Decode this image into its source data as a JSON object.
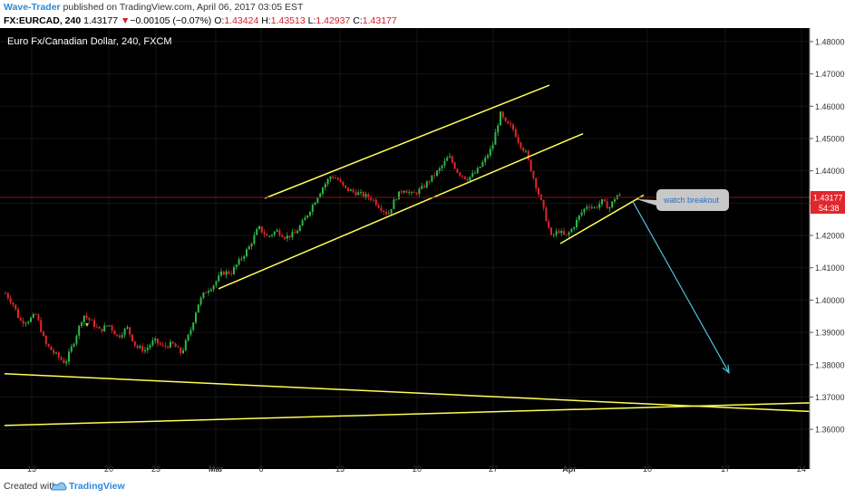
{
  "header": {
    "author": "Wave-Trader",
    "published_text": " published on TradingView.com, April 06, 2017 03:05 EST"
  },
  "quote": {
    "symbol": "FX:EURCAD, 240",
    "last": "1.43177",
    "change_arrow": "▼",
    "change": "−0.00105 (−0.07%)",
    "open_label": "O:",
    "open": "1.43424",
    "high_label": "H:",
    "high": "1.43513",
    "low_label": "L:",
    "low": "1.42937",
    "close_label": "C:",
    "close": "1.43177"
  },
  "footer": {
    "created_with": "Created with",
    "brand": "TradingView"
  },
  "chart_data": {
    "type": "candlestick",
    "title": "Euro Fx/Canadian Dollar, 240, FXCM",
    "x_tick_labels": [
      "13",
      "20",
      "23",
      "Mar",
      "6",
      "13",
      "20",
      "27",
      "Apr",
      "10",
      "17",
      "24"
    ],
    "y_tick_labels": [
      "1.48000",
      "1.47000",
      "1.46000",
      "1.45000",
      "1.44000",
      "1.43000",
      "1.42000",
      "1.41000",
      "1.40000",
      "1.39000",
      "1.38000",
      "1.37000",
      "1.36000"
    ],
    "ylim": [
      1.355,
      1.4825
    ],
    "last_price_label": "1.43177",
    "countdown_label": "54:38",
    "up_color": "#2fb84a",
    "down_color": "#e2262c",
    "trendline_color": "#ffff55",
    "projection_color": "#4fc3e0",
    "annotation": "watch breakout",
    "price_path": [
      [
        5,
        1.4025
      ],
      [
        15,
        1.3985
      ],
      [
        22,
        1.3935
      ],
      [
        30,
        1.3935
      ],
      [
        40,
        1.3955
      ],
      [
        50,
        1.3865
      ],
      [
        60,
        1.3835
      ],
      [
        72,
        1.3805
      ],
      [
        82,
        1.3875
      ],
      [
        92,
        1.3955
      ],
      [
        100,
        1.3935
      ],
      [
        110,
        1.3905
      ],
      [
        120,
        1.3925
      ],
      [
        130,
        1.3885
      ],
      [
        140,
        1.3915
      ],
      [
        150,
        1.3855
      ],
      [
        160,
        1.3845
      ],
      [
        170,
        1.3875
      ],
      [
        180,
        1.3855
      ],
      [
        190,
        1.3865
      ],
      [
        200,
        1.3835
      ],
      [
        210,
        1.3905
      ],
      [
        218,
        1.3985
      ],
      [
        226,
        1.4025
      ],
      [
        235,
        1.4045
      ],
      [
        245,
        1.4085
      ],
      [
        255,
        1.4085
      ],
      [
        265,
        1.4125
      ],
      [
        275,
        1.4165
      ],
      [
        285,
        1.4225
      ],
      [
        295,
        1.4195
      ],
      [
        305,
        1.4215
      ],
      [
        315,
        1.4195
      ],
      [
        325,
        1.4205
      ],
      [
        335,
        1.4245
      ],
      [
        345,
        1.4295
      ],
      [
        355,
        1.4345
      ],
      [
        365,
        1.4385
      ],
      [
        372,
        1.4375
      ],
      [
        380,
        1.4345
      ],
      [
        390,
        1.4335
      ],
      [
        400,
        1.4325
      ],
      [
        410,
        1.4315
      ],
      [
        420,
        1.4285
      ],
      [
        428,
        1.4265
      ],
      [
        436,
        1.4315
      ],
      [
        445,
        1.4345
      ],
      [
        455,
        1.4325
      ],
      [
        465,
        1.4345
      ],
      [
        475,
        1.4375
      ],
      [
        485,
        1.4405
      ],
      [
        495,
        1.4445
      ],
      [
        505,
        1.4395
      ],
      [
        515,
        1.4375
      ],
      [
        525,
        1.4395
      ],
      [
        535,
        1.4435
      ],
      [
        543,
        1.4475
      ],
      [
        548,
        1.4535
      ],
      [
        552,
        1.4575
      ],
      [
        558,
        1.4545
      ],
      [
        565,
        1.4535
      ],
      [
        573,
        1.4485
      ],
      [
        580,
        1.4455
      ],
      [
        590,
        1.4365
      ],
      [
        600,
        1.4275
      ],
      [
        608,
        1.4195
      ],
      [
        616,
        1.4215
      ],
      [
        624,
        1.4195
      ],
      [
        632,
        1.4225
      ],
      [
        640,
        1.4265
      ],
      [
        648,
        1.4295
      ],
      [
        656,
        1.4285
      ],
      [
        664,
        1.4305
      ],
      [
        672,
        1.4285
      ],
      [
        680,
        1.4325
      ],
      [
        688,
        1.4318
      ]
    ],
    "trendlines": [
      {
        "name": "channel-upper",
        "points": [
          [
            292,
            1.4315
          ],
          [
            606,
            1.4665
          ]
        ]
      },
      {
        "name": "channel-lower",
        "points": [
          [
            241,
            1.4035
          ],
          [
            643,
            1.4515
          ]
        ]
      },
      {
        "name": "rising-support",
        "points": [
          [
            618,
            1.4175
          ],
          [
            710,
            1.4325
          ]
        ]
      },
      {
        "name": "wedge-upper",
        "points": [
          [
            5,
            1.3772
          ],
          [
            895,
            1.3655
          ]
        ]
      },
      {
        "name": "wedge-lower",
        "points": [
          [
            5,
            1.3612
          ],
          [
            895,
            1.3682
          ]
        ]
      }
    ],
    "projection": {
      "from": [
        698,
        1.4305
      ],
      "to": [
        804,
        1.3775
      ]
    }
  }
}
